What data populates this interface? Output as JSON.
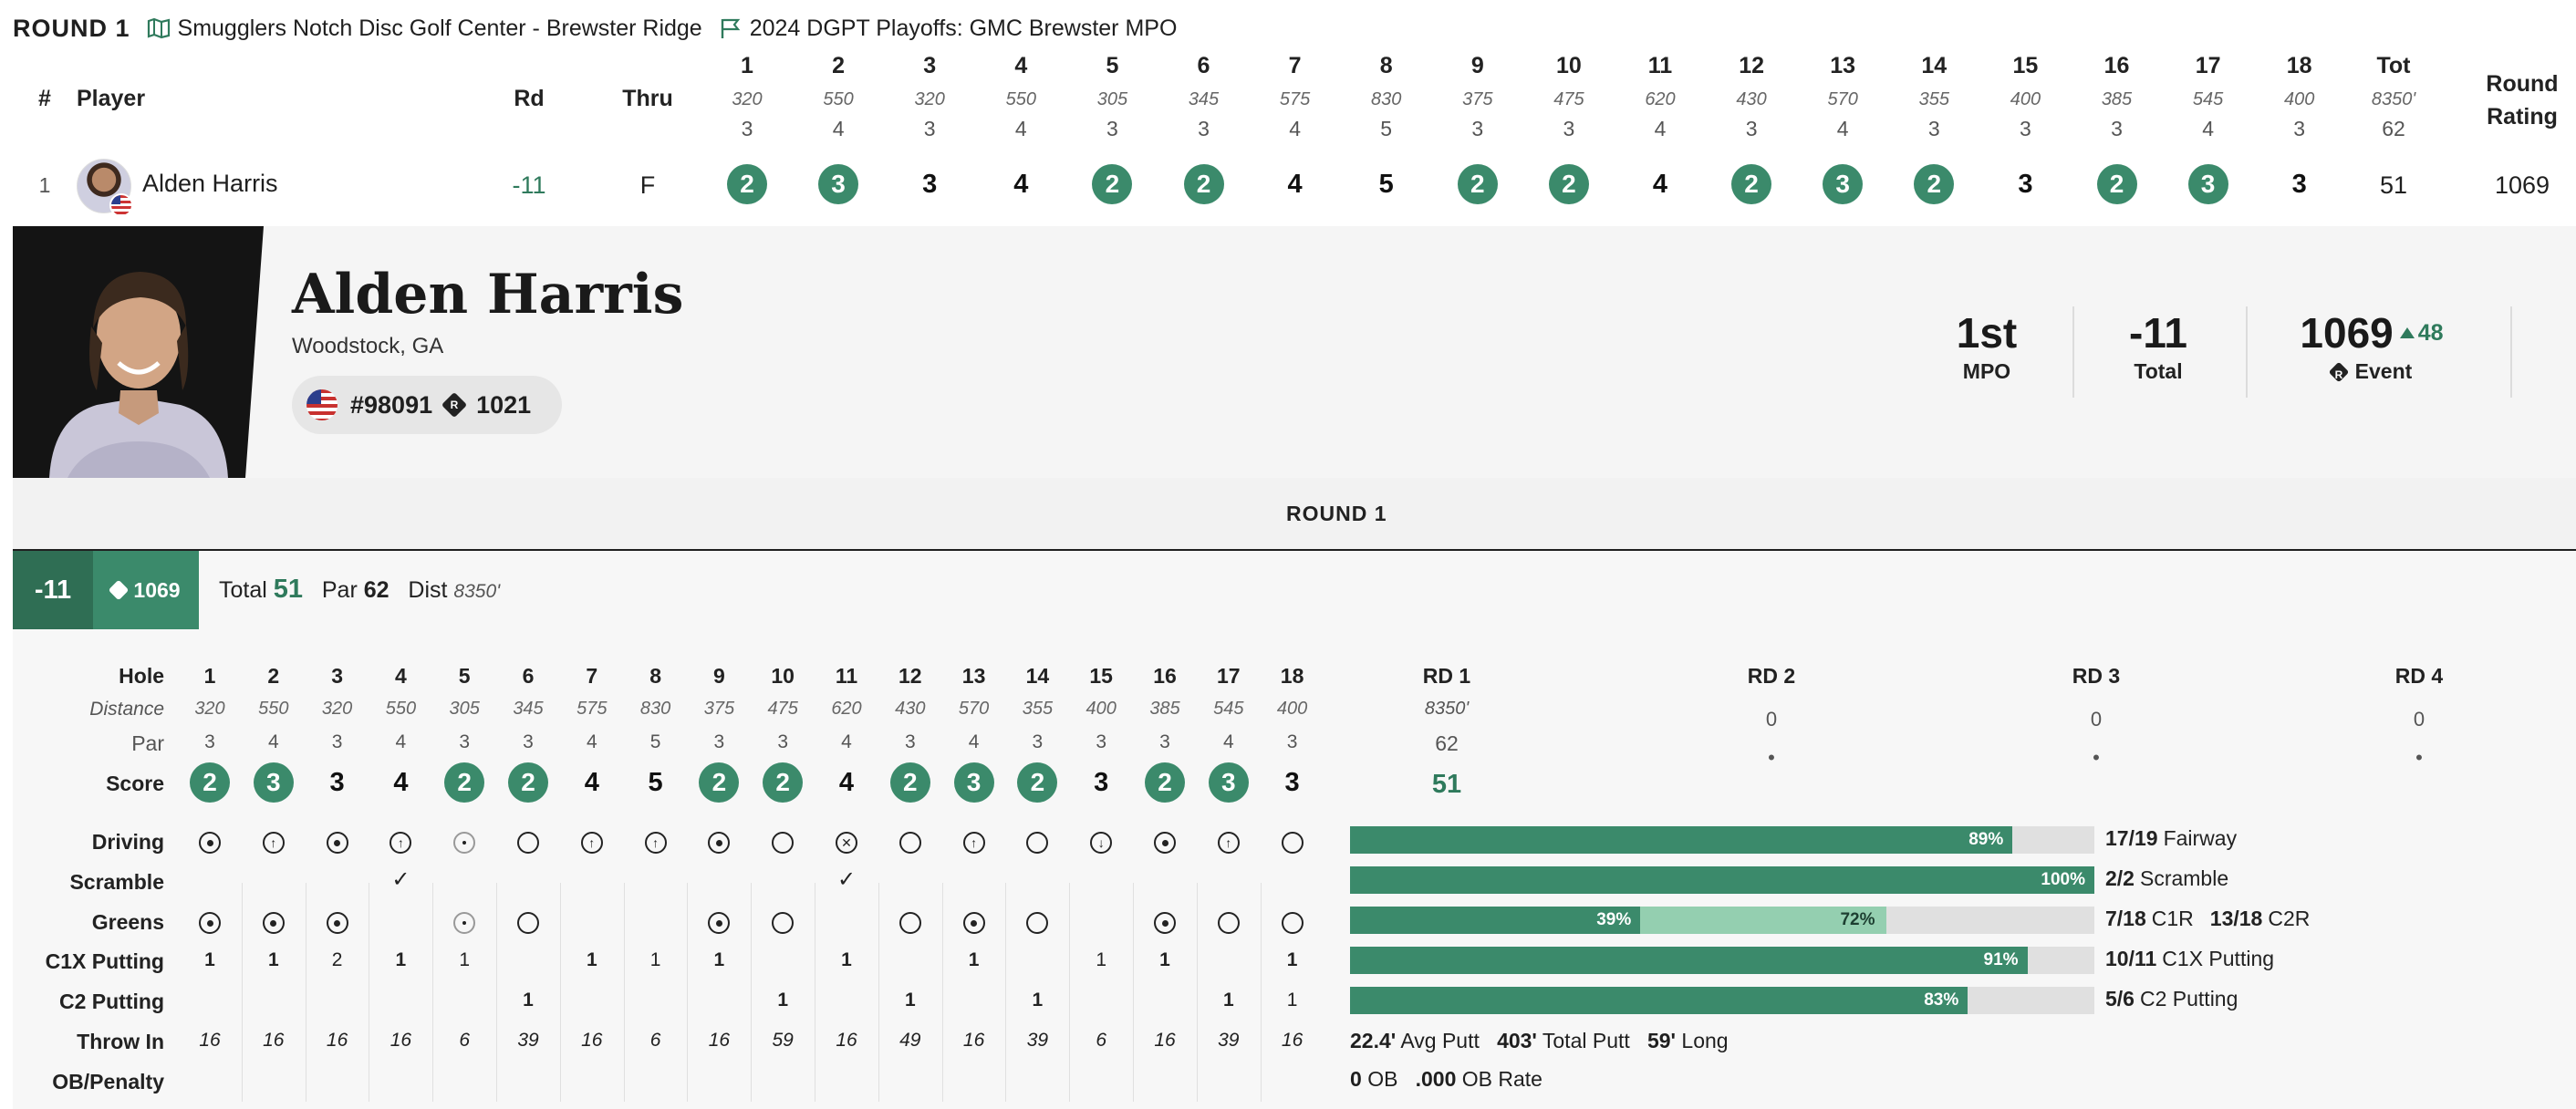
{
  "top": {
    "round_title": "ROUND 1",
    "course": "Smugglers Notch Disc Golf Center - Brewster Ridge",
    "event": "2024 DGPT Playoffs: GMC Brewster MPO"
  },
  "leaderboard": {
    "headers": {
      "rank": "#",
      "player": "Player",
      "rd": "Rd",
      "thru": "Thru",
      "tot": "Tot",
      "rating": "Round Rating"
    },
    "holes": [
      "1",
      "2",
      "3",
      "4",
      "5",
      "6",
      "7",
      "8",
      "9",
      "10",
      "11",
      "12",
      "13",
      "14",
      "15",
      "16",
      "17",
      "18"
    ],
    "distances": [
      "320",
      "550",
      "320",
      "550",
      "305",
      "345",
      "575",
      "830",
      "375",
      "475",
      "620",
      "430",
      "570",
      "355",
      "400",
      "385",
      "545",
      "400"
    ],
    "pars": [
      "3",
      "4",
      "3",
      "4",
      "3",
      "3",
      "4",
      "5",
      "3",
      "3",
      "4",
      "3",
      "4",
      "3",
      "3",
      "3",
      "4",
      "3"
    ],
    "tot_dist": "8350'",
    "tot_par": "62",
    "row": {
      "rank": "1",
      "player": "Alden Harris",
      "rd": "-11",
      "thru": "F",
      "scores": [
        "2",
        "3",
        "3",
        "4",
        "2",
        "2",
        "4",
        "5",
        "2",
        "2",
        "4",
        "2",
        "3",
        "2",
        "3",
        "2",
        "3",
        "3"
      ],
      "birdie": [
        true,
        true,
        false,
        false,
        true,
        true,
        false,
        false,
        true,
        true,
        false,
        true,
        true,
        true,
        false,
        true,
        true,
        false
      ],
      "total": "51",
      "rating": "1069"
    }
  },
  "profile": {
    "name": "Alden Harris",
    "location": "Woodstock, GA",
    "pdga": "#98091",
    "rating": "1021",
    "stats": {
      "place": "1st",
      "place_label": "MPO",
      "total": "-11",
      "total_label": "Total",
      "event_rating": "1069",
      "rating_delta": "48",
      "rating_label": "Event"
    }
  },
  "round_band": "ROUND 1",
  "summary": {
    "score": "-11",
    "rating": "1069",
    "total_label": "Total",
    "total": "51",
    "par_label": "Par",
    "par": "62",
    "dist_label": "Dist",
    "dist": "8350'"
  },
  "detail": {
    "labels": {
      "hole": "Hole",
      "distance": "Distance",
      "par": "Par",
      "score": "Score",
      "driving": "Driving",
      "scramble": "Scramble",
      "greens": "Greens",
      "c1x": "C1X Putting",
      "c2": "C2 Putting",
      "throwin": "Throw In",
      "ob": "OB/Penalty"
    },
    "driving": [
      "target",
      "up",
      "dot",
      "up",
      "small",
      "ring",
      "up",
      "up",
      "target",
      "ring",
      "x",
      "ring",
      "up",
      "ring",
      "down",
      "target",
      "up",
      "ring"
    ],
    "scramble": [
      "",
      "",
      "",
      "check",
      "",
      "",
      "",
      "",
      "",
      "",
      "check",
      "",
      "",
      "",
      "",
      "",
      "",
      ""
    ],
    "greens": [
      "target",
      "target",
      "target",
      "",
      "small",
      "ring",
      "",
      "",
      "target",
      "ring",
      "",
      "ring",
      "target",
      "ring",
      "",
      "target",
      "ring",
      "ring"
    ],
    "c1x": [
      "1",
      "1",
      "2",
      "1",
      "1",
      "",
      "1",
      "1",
      "1",
      "",
      "1",
      "",
      "1",
      "",
      "1",
      "1",
      "",
      "1"
    ],
    "c1x_bold": [
      true,
      true,
      false,
      true,
      false,
      false,
      true,
      false,
      true,
      false,
      true,
      false,
      true,
      false,
      false,
      true,
      false,
      true
    ],
    "c2": [
      "",
      "",
      "",
      "",
      "",
      "1",
      "",
      "",
      "",
      "1",
      "",
      "1",
      "",
      "1",
      "",
      "",
      "1",
      "1"
    ],
    "c2_bold": [
      false,
      false,
      false,
      false,
      false,
      true,
      false,
      false,
      false,
      true,
      false,
      true,
      false,
      true,
      false,
      false,
      true,
      false
    ],
    "throwin": [
      "16",
      "16",
      "16",
      "16",
      "6",
      "39",
      "16",
      "6",
      "16",
      "59",
      "16",
      "49",
      "16",
      "39",
      "6",
      "16",
      "39",
      "16"
    ],
    "rounds": [
      {
        "label": "RD 1",
        "dist": "8350'",
        "par": "62",
        "score": "51"
      },
      {
        "label": "RD 2",
        "par": "0",
        "score": "•"
      },
      {
        "label": "RD 3",
        "par": "0",
        "score": "•"
      },
      {
        "label": "RD 4",
        "par": "0",
        "score": "•"
      }
    ],
    "bars": [
      {
        "pct": 89,
        "pct_label": "89%",
        "frac": "17/19",
        "label": "Fairway"
      },
      {
        "pct": 100,
        "pct_label": "100%",
        "frac": "2/2",
        "label": "Scramble"
      },
      {
        "pct": 39,
        "pct_label": "39%",
        "pct2": 72,
        "pct2_label": "72%",
        "frac": "7/18",
        "label": "C1R",
        "frac2": "13/18",
        "label2": "C2R"
      },
      {
        "pct": 91,
        "pct_label": "91%",
        "frac": "10/11",
        "label": "C1X Putting"
      },
      {
        "pct": 83,
        "pct_label": "83%",
        "frac": "5/6",
        "label": "C2 Putting"
      }
    ],
    "putt_stats": {
      "avg": "22.4'",
      "avg_label": "Avg Putt",
      "total": "403'",
      "total_label": "Total Putt",
      "long": "59'",
      "long_label": "Long"
    },
    "ob_stats": {
      "ob": "0",
      "ob_label": "OB",
      "rate": ".000",
      "rate_label": "OB Rate"
    }
  },
  "colors": {
    "green": "#3b8a6b",
    "dark_green": "#2f6e54",
    "light_green": "#94cfb0"
  }
}
